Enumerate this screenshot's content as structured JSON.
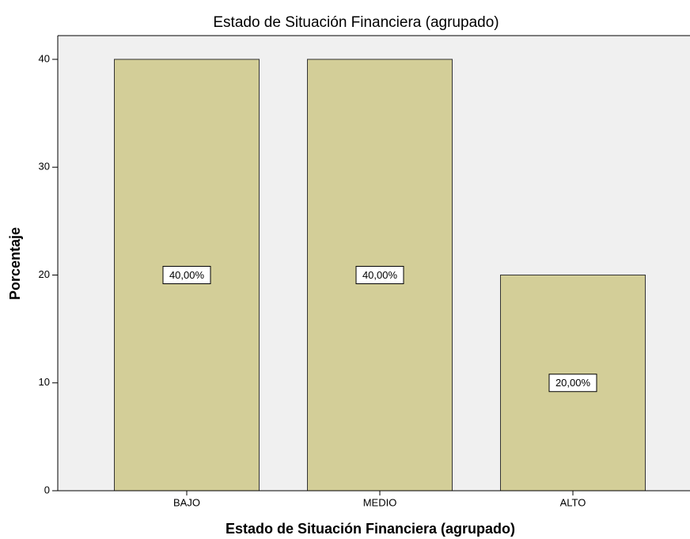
{
  "chart_data": {
    "type": "bar",
    "title": "Estado de Situación Financiera (agrupado)",
    "x_label": "Estado de Situación Financiera (agrupado)",
    "y_label": "Porcentaje",
    "categories": [
      "BAJO",
      "MEDIO",
      "ALTO"
    ],
    "values": [
      40,
      40,
      20
    ],
    "value_labels": [
      "40,00%",
      "40,00%",
      "20,00%"
    ],
    "color": "#d3ce98",
    "ylim": [
      0,
      42.2
    ],
    "yticks": [
      0,
      10,
      20,
      30,
      40
    ],
    "grid": false
  }
}
